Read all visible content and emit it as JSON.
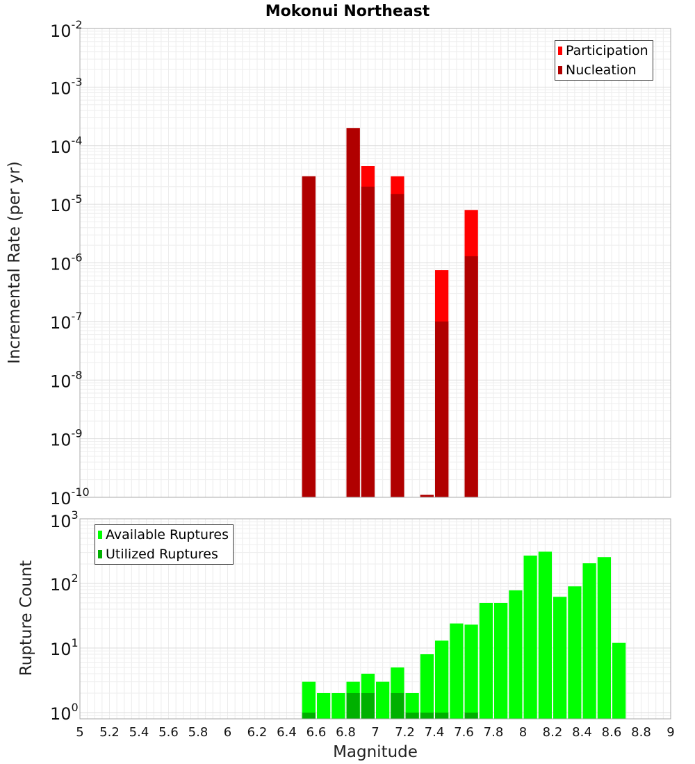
{
  "title": "Mokonui Northeast",
  "xlabel": "Magnitude",
  "x_ticks": [
    "5",
    "5.2",
    "5.4",
    "5.6",
    "5.8",
    "6",
    "6.2",
    "6.4",
    "6.6",
    "6.8",
    "7",
    "7.2",
    "7.4",
    "7.6",
    "7.8",
    "8",
    "8.2",
    "8.4",
    "8.6",
    "8.8",
    "9"
  ],
  "top_y_ticks": [
    {
      "base": "10",
      "exp": "-2"
    },
    {
      "base": "10",
      "exp": "-3"
    },
    {
      "base": "10",
      "exp": "-4"
    },
    {
      "base": "10",
      "exp": "-5"
    },
    {
      "base": "10",
      "exp": "-6"
    },
    {
      "base": "10",
      "exp": "-7"
    },
    {
      "base": "10",
      "exp": "-8"
    },
    {
      "base": "10",
      "exp": "-9"
    },
    {
      "base": "10",
      "exp": "-10"
    }
  ],
  "bottom_y_ticks": [
    {
      "base": "10",
      "exp": "3"
    },
    {
      "base": "10",
      "exp": "2"
    },
    {
      "base": "10",
      "exp": "1"
    },
    {
      "base": "10",
      "exp": "0"
    }
  ],
  "colors": {
    "participation": "#ff0000",
    "nucleation": "#b00000",
    "available": "#00ff00",
    "utilized": "#00b000"
  },
  "chart_data": [
    {
      "type": "bar",
      "title": "Mokonui Northeast",
      "xlabel": "Magnitude",
      "ylabel": "Incremental Rate (per yr)",
      "xlim": [
        5,
        9
      ],
      "ylim": [
        1e-10,
        0.01
      ],
      "yscale": "log",
      "bin_width": 0.1,
      "grid": true,
      "legend_position": "top-right",
      "series": [
        {
          "name": "Participation",
          "color": "#ff0000",
          "x": [
            6.55,
            6.85,
            6.95,
            7.15,
            7.35,
            7.45,
            7.65
          ],
          "values": [
            3e-05,
            0.0002,
            4.5e-05,
            3e-05,
            1.1e-10,
            7.5e-07,
            8e-06
          ]
        },
        {
          "name": "Nucleation",
          "color": "#b00000",
          "x": [
            6.55,
            6.85,
            6.95,
            7.15,
            7.35,
            7.45,
            7.65
          ],
          "values": [
            3e-05,
            0.0002,
            2e-05,
            1.5e-05,
            1.1e-10,
            1e-07,
            1.3e-06
          ]
        }
      ]
    },
    {
      "type": "bar",
      "xlabel": "Magnitude",
      "ylabel": "Rupture Count",
      "xlim": [
        5,
        9
      ],
      "ylim": [
        0.8,
        1000
      ],
      "yscale": "log",
      "bin_width": 0.1,
      "grid": true,
      "legend_position": "top-left",
      "series": [
        {
          "name": "Available Ruptures",
          "color": "#00ff00",
          "x": [
            6.55,
            6.65,
            6.75,
            6.85,
            6.95,
            7.05,
            7.15,
            7.25,
            7.35,
            7.45,
            7.55,
            7.65,
            7.75,
            7.85,
            7.95,
            8.05,
            8.15,
            8.25,
            8.35,
            8.45,
            8.55,
            8.65
          ],
          "values": [
            3,
            2,
            2,
            3,
            4,
            3,
            5,
            2,
            8,
            13,
            24,
            23,
            50,
            50,
            78,
            270,
            310,
            62,
            90,
            205,
            255,
            12
          ]
        },
        {
          "name": "Utilized Ruptures",
          "color": "#00b000",
          "x": [
            6.55,
            6.85,
            6.95,
            7.15,
            7.25,
            7.35,
            7.45,
            7.65
          ],
          "values": [
            1,
            2,
            2,
            2,
            1,
            1,
            1,
            1
          ]
        }
      ]
    }
  ]
}
